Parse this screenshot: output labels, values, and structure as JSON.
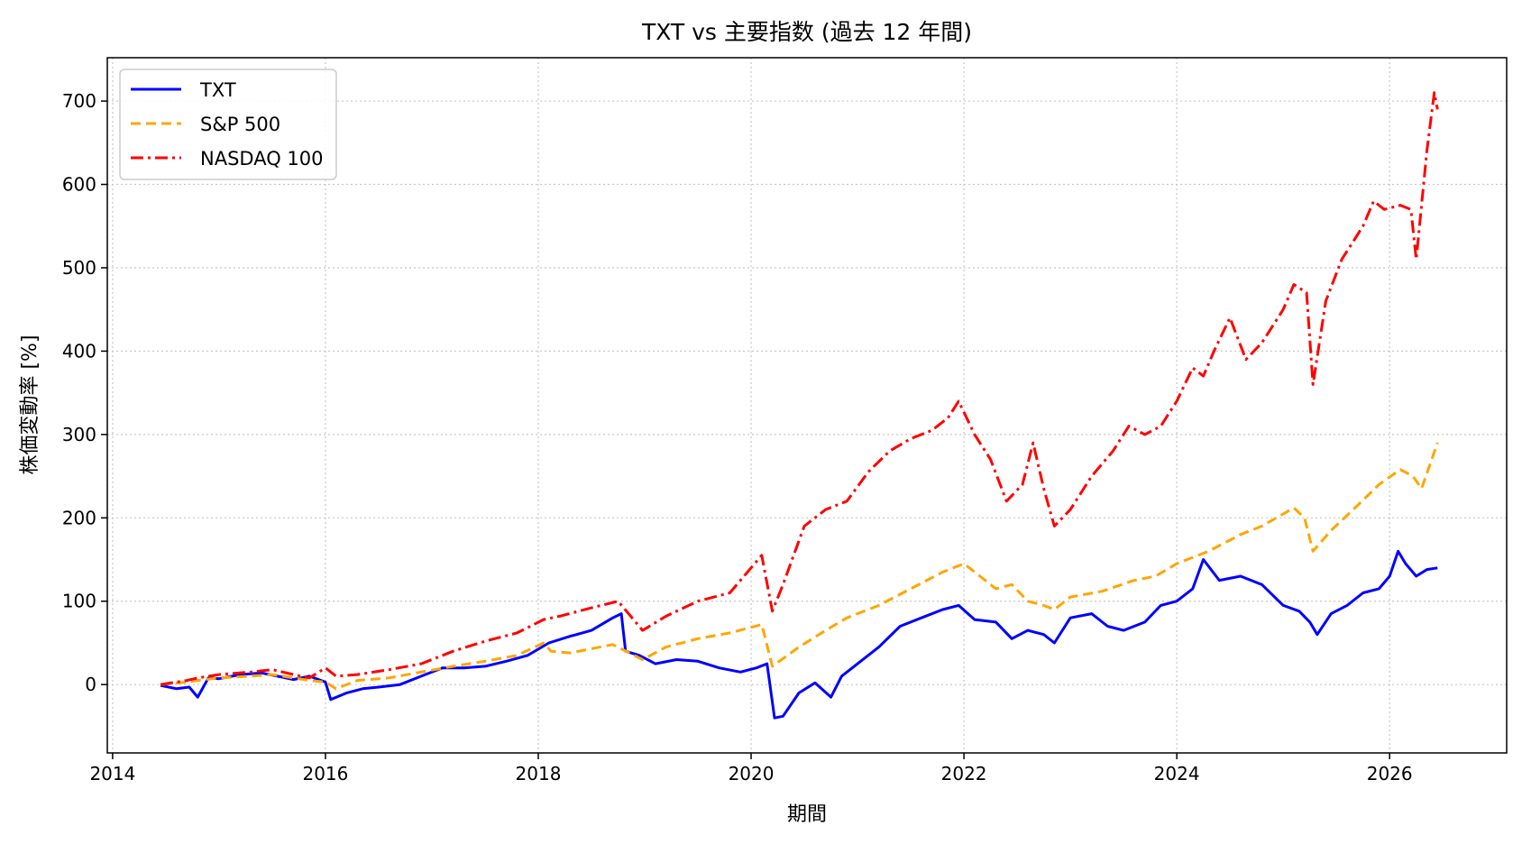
{
  "chart_data": {
    "type": "line",
    "title": "TXT vs 主要指数 (過去 12 年間)",
    "xlabel": "期間",
    "ylabel": "株価変動率 [%]",
    "xlim": [
      2013.95,
      2027.1
    ],
    "ylim": [
      -82,
      752
    ],
    "x_ticks": [
      2014,
      2016,
      2018,
      2020,
      2022,
      2024,
      2026
    ],
    "y_ticks": [
      0,
      100,
      200,
      300,
      400,
      500,
      600,
      700
    ],
    "grid": true,
    "legend_position": "upper-left",
    "series": [
      {
        "name": "TXT",
        "color": "#0000ff",
        "dash": "solid",
        "x": [
          2014.45,
          2014.6,
          2014.72,
          2014.8,
          2014.9,
          2015.0,
          2015.2,
          2015.4,
          2015.55,
          2015.7,
          2015.85,
          2016.0,
          2016.05,
          2016.2,
          2016.35,
          2016.5,
          2016.7,
          2016.9,
          2017.1,
          2017.3,
          2017.5,
          2017.7,
          2017.9,
          2018.1,
          2018.3,
          2018.5,
          2018.7,
          2018.78,
          2018.82,
          2018.95,
          2019.1,
          2019.3,
          2019.5,
          2019.7,
          2019.9,
          2020.05,
          2020.15,
          2020.22,
          2020.3,
          2020.45,
          2020.6,
          2020.75,
          2020.85,
          2021.0,
          2021.2,
          2021.4,
          2021.6,
          2021.8,
          2021.95,
          2022.1,
          2022.3,
          2022.45,
          2022.6,
          2022.75,
          2022.85,
          2023.0,
          2023.2,
          2023.35,
          2023.5,
          2023.7,
          2023.85,
          2024.0,
          2024.15,
          2024.25,
          2024.4,
          2024.6,
          2024.8,
          2025.0,
          2025.15,
          2025.25,
          2025.32,
          2025.45,
          2025.6,
          2025.75,
          2025.9,
          2026.0,
          2026.08,
          2026.15,
          2026.25,
          2026.35,
          2026.45
        ],
        "y": [
          -1,
          -5,
          -3,
          -15,
          8,
          7,
          12,
          14,
          10,
          6,
          10,
          3,
          -18,
          -10,
          -5,
          -3,
          0,
          10,
          20,
          20,
          22,
          28,
          35,
          50,
          58,
          65,
          80,
          85,
          40,
          35,
          25,
          30,
          28,
          20,
          15,
          20,
          25,
          -40,
          -38,
          -10,
          2,
          -15,
          10,
          25,
          45,
          70,
          80,
          90,
          95,
          78,
          75,
          55,
          65,
          60,
          50,
          80,
          85,
          70,
          65,
          75,
          95,
          100,
          115,
          150,
          125,
          130,
          120,
          95,
          88,
          75,
          60,
          85,
          95,
          110,
          115,
          130,
          160,
          145,
          130,
          138,
          140
        ]
      },
      {
        "name": "S&P 500",
        "color": "#ffa500",
        "dash": "dashed",
        "x": [
          2014.45,
          2014.7,
          2014.8,
          2015.0,
          2015.3,
          2015.5,
          2015.7,
          2015.85,
          2016.0,
          2016.1,
          2016.3,
          2016.6,
          2016.9,
          2017.2,
          2017.5,
          2017.8,
          2018.05,
          2018.12,
          2018.3,
          2018.7,
          2018.98,
          2019.2,
          2019.5,
          2019.8,
          2020.1,
          2020.2,
          2020.45,
          2020.7,
          2020.9,
          2021.2,
          2021.5,
          2021.8,
          2022.0,
          2022.15,
          2022.3,
          2022.45,
          2022.6,
          2022.75,
          2022.85,
          2023.0,
          2023.3,
          2023.6,
          2023.8,
          2024.0,
          2024.3,
          2024.6,
          2024.8,
          2025.1,
          2025.2,
          2025.28,
          2025.45,
          2025.7,
          2025.9,
          2026.1,
          2026.22,
          2026.3,
          2026.45
        ],
        "y": [
          0,
          3,
          5,
          8,
          10,
          12,
          8,
          5,
          3,
          -5,
          5,
          8,
          15,
          22,
          28,
          35,
          50,
          40,
          38,
          48,
          30,
          45,
          55,
          62,
          72,
          22,
          45,
          65,
          80,
          95,
          115,
          135,
          145,
          130,
          115,
          120,
          100,
          95,
          90,
          105,
          112,
          125,
          130,
          145,
          160,
          180,
          190,
          212,
          200,
          160,
          185,
          215,
          240,
          258,
          250,
          235,
          290
        ]
      },
      {
        "name": "NASDAQ 100",
        "color": "#ff0000",
        "dash": "dashdot",
        "x": [
          2014.45,
          2014.7,
          2014.8,
          2015.0,
          2015.3,
          2015.5,
          2015.7,
          2015.85,
          2016.0,
          2016.1,
          2016.3,
          2016.6,
          2016.9,
          2017.2,
          2017.5,
          2017.8,
          2018.05,
          2018.2,
          2018.5,
          2018.75,
          2018.98,
          2019.2,
          2019.5,
          2019.8,
          2020.1,
          2020.2,
          2020.3,
          2020.5,
          2020.7,
          2020.9,
          2021.1,
          2021.3,
          2021.5,
          2021.7,
          2021.85,
          2021.95,
          2022.1,
          2022.25,
          2022.4,
          2022.55,
          2022.65,
          2022.75,
          2022.85,
          2023.0,
          2023.2,
          2023.4,
          2023.55,
          2023.7,
          2023.85,
          2024.0,
          2024.15,
          2024.25,
          2024.35,
          2024.5,
          2024.65,
          2024.8,
          2025.0,
          2025.1,
          2025.22,
          2025.28,
          2025.4,
          2025.55,
          2025.75,
          2025.85,
          2025.95,
          2026.1,
          2026.2,
          2026.25,
          2026.35,
          2026.42,
          2026.45
        ],
        "y": [
          0,
          5,
          8,
          12,
          15,
          18,
          12,
          8,
          20,
          10,
          12,
          18,
          25,
          40,
          52,
          62,
          78,
          82,
          92,
          100,
          65,
          82,
          100,
          110,
          155,
          88,
          120,
          190,
          210,
          220,
          255,
          280,
          295,
          305,
          320,
          340,
          300,
          270,
          220,
          240,
          290,
          235,
          190,
          210,
          250,
          280,
          310,
          300,
          310,
          340,
          380,
          370,
          400,
          440,
          390,
          410,
          450,
          480,
          470,
          360,
          460,
          510,
          550,
          580,
          570,
          575,
          570,
          510,
          640,
          710,
          690
        ]
      }
    ]
  }
}
